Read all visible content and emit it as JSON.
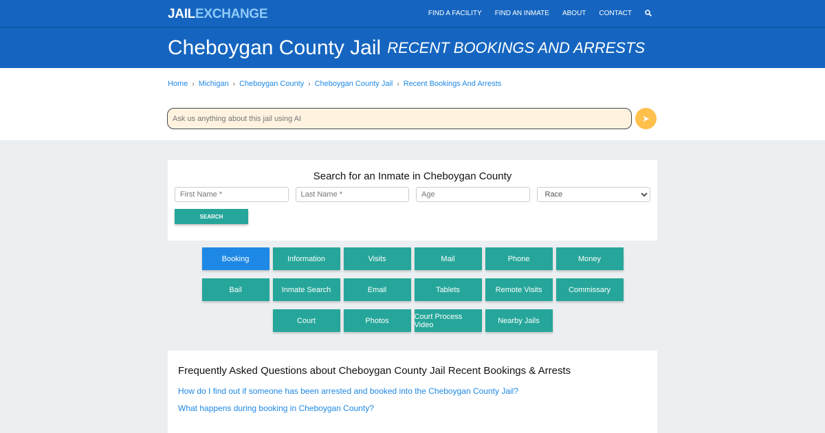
{
  "brand": {
    "part1": "JAIL",
    "part2": "EXCHANGE"
  },
  "nav": [
    "FIND A FACILITY",
    "FIND AN INMATE",
    "ABOUT",
    "CONTACT"
  ],
  "hero": {
    "title": "Cheboygan County Jail",
    "subtitle": "RECENT BOOKINGS AND ARRESTS"
  },
  "breadcrumb": [
    "Home",
    "Michigan",
    "Cheboygan County",
    "Cheboygan County Jail",
    "Recent Bookings And Arrests"
  ],
  "ai": {
    "placeholder": "Ask us anything about this jail using AI"
  },
  "search": {
    "title": "Search for an Inmate in Cheboygan County",
    "first": "First Name *",
    "last": "Last Name *",
    "age": "Age",
    "race": "Race",
    "button": "SEARCH"
  },
  "buttons": [
    "Booking",
    "Information",
    "Visits",
    "Mail",
    "Phone",
    "Money",
    "Bail",
    "Inmate Search",
    "Email",
    "Tablets",
    "Remote Visits",
    "Commissary",
    "Court",
    "Photos",
    "Court Process Video",
    "Nearby Jails"
  ],
  "faq": {
    "title": "Frequently Asked Questions about Cheboygan County Jail Recent Bookings & Arrests",
    "questions": [
      "How do I find out if someone has been arrested and booked into the Cheboygan County Jail?",
      "What happens during booking in Cheboygan County?"
    ]
  },
  "colors": {
    "primary": "#1565c0",
    "teal": "#26a69a",
    "active": "#1e88e5",
    "send": "#ffc04d"
  }
}
